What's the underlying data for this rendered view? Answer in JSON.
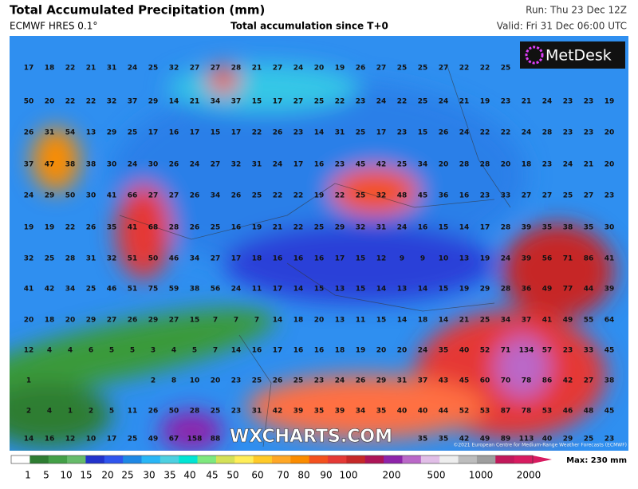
{
  "header": {
    "title": "Total Accumulated Precipitation (mm)",
    "model": "ECMWF HRES 0.1°",
    "subtitle": "Total accumulation since T+0",
    "run": "Run: Thu 23 Dec 12Z",
    "valid": "Valid: Fri 31 Dec 06:00 UTC"
  },
  "logo": "MetDesk",
  "watermark": "WXCHARTS.COM",
  "copyright": "©2021 European Centre for Medium-Range Weather Forecasts (ECMWF)",
  "grid": [
    [
      17,
      18,
      22,
      21,
      31,
      24,
      25,
      32,
      27,
      27,
      28,
      21,
      27,
      24,
      20,
      19,
      26,
      27,
      25,
      25,
      27,
      22,
      22,
      25,
      null,
      null,
      null,
      null,
      null
    ],
    [
      50,
      20,
      22,
      22,
      32,
      37,
      29,
      14,
      21,
      34,
      37,
      15,
      17,
      27,
      25,
      22,
      23,
      24,
      22,
      25,
      24,
      21,
      19,
      23,
      21,
      24,
      23,
      23,
      19
    ],
    [
      26,
      31,
      54,
      13,
      29,
      25,
      17,
      16,
      17,
      15,
      17,
      22,
      26,
      23,
      14,
      31,
      25,
      17,
      23,
      15,
      26,
      24,
      22,
      22,
      24,
      28,
      23,
      23,
      20
    ],
    [
      37,
      47,
      38,
      38,
      30,
      24,
      30,
      26,
      24,
      27,
      32,
      31,
      24,
      17,
      16,
      23,
      45,
      42,
      25,
      34,
      20,
      28,
      28,
      20,
      18,
      23,
      24,
      21,
      20
    ],
    [
      24,
      29,
      50,
      30,
      41,
      66,
      27,
      27,
      26,
      34,
      26,
      25,
      22,
      22,
      19,
      22,
      25,
      32,
      48,
      45,
      36,
      16,
      23,
      33,
      27,
      27,
      25,
      27,
      23
    ],
    [
      19,
      19,
      22,
      26,
      35,
      41,
      68,
      28,
      26,
      25,
      16,
      19,
      21,
      22,
      25,
      29,
      32,
      31,
      24,
      16,
      15,
      14,
      17,
      28,
      39,
      35,
      38,
      35,
      30
    ],
    [
      32,
      25,
      28,
      31,
      32,
      51,
      50,
      46,
      34,
      27,
      17,
      18,
      16,
      16,
      16,
      17,
      15,
      12,
      9,
      9,
      10,
      13,
      19,
      24,
      39,
      56,
      71,
      86,
      41
    ],
    [
      41,
      42,
      34,
      25,
      46,
      51,
      75,
      59,
      38,
      56,
      24,
      11,
      17,
      14,
      15,
      13,
      15,
      14,
      13,
      14,
      15,
      19,
      29,
      28,
      36,
      49,
      77,
      44,
      39
    ],
    [
      20,
      18,
      20,
      29,
      27,
      26,
      29,
      27,
      15,
      7,
      7,
      7,
      14,
      18,
      20,
      13,
      11,
      15,
      14,
      18,
      14,
      21,
      25,
      34,
      37,
      41,
      49,
      55,
      64
    ],
    [
      12,
      4,
      4,
      6,
      5,
      5,
      3,
      4,
      5,
      7,
      14,
      16,
      17,
      16,
      16,
      18,
      19,
      20,
      20,
      24,
      35,
      40,
      52,
      71,
      134,
      57,
      23,
      33,
      45
    ],
    [
      1,
      null,
      null,
      null,
      null,
      null,
      2,
      8,
      10,
      20,
      23,
      25,
      26,
      25,
      23,
      24,
      26,
      29,
      31,
      37,
      43,
      45,
      60,
      70,
      78,
      86,
      42,
      27,
      38
    ],
    [
      2,
      4,
      1,
      2,
      5,
      11,
      26,
      50,
      28,
      25,
      23,
      31,
      42,
      39,
      35,
      39,
      34,
      35,
      40,
      40,
      44,
      52,
      53,
      87,
      78,
      53,
      46,
      48,
      45
    ],
    [
      14,
      16,
      12,
      10,
      17,
      25,
      49,
      67,
      158,
      88,
      null,
      null,
      null,
      null,
      null,
      null,
      null,
      null,
      null,
      35,
      35,
      42,
      49,
      89,
      113,
      40,
      29,
      25,
      23
    ]
  ],
  "colorbar": {
    "labels": [
      1,
      5,
      10,
      15,
      20,
      25,
      30,
      35,
      40,
      45,
      50,
      60,
      70,
      80,
      90,
      100,
      200,
      500,
      1000,
      2000
    ],
    "colors": [
      "#ffffff",
      "#2e7d32",
      "#43a047",
      "#66bb6a",
      "#2233cc",
      "#2f55ee",
      "#1e88e5",
      "#29b6f6",
      "#4dd0e1",
      "#00e5d4",
      "#7ee87e",
      "#d4e157",
      "#ffee58",
      "#ffca28",
      "#ffa726",
      "#fb8c00",
      "#f4511e",
      "#e53935",
      "#c62828",
      "#ad1457",
      "#8e24aa",
      "#ba68c8",
      "#e1bee7",
      "#eeeeee",
      "#bdbdbd",
      "#9e9e9e",
      "#c2185b",
      "#d81b60"
    ],
    "max": "Max: 230 mm"
  }
}
